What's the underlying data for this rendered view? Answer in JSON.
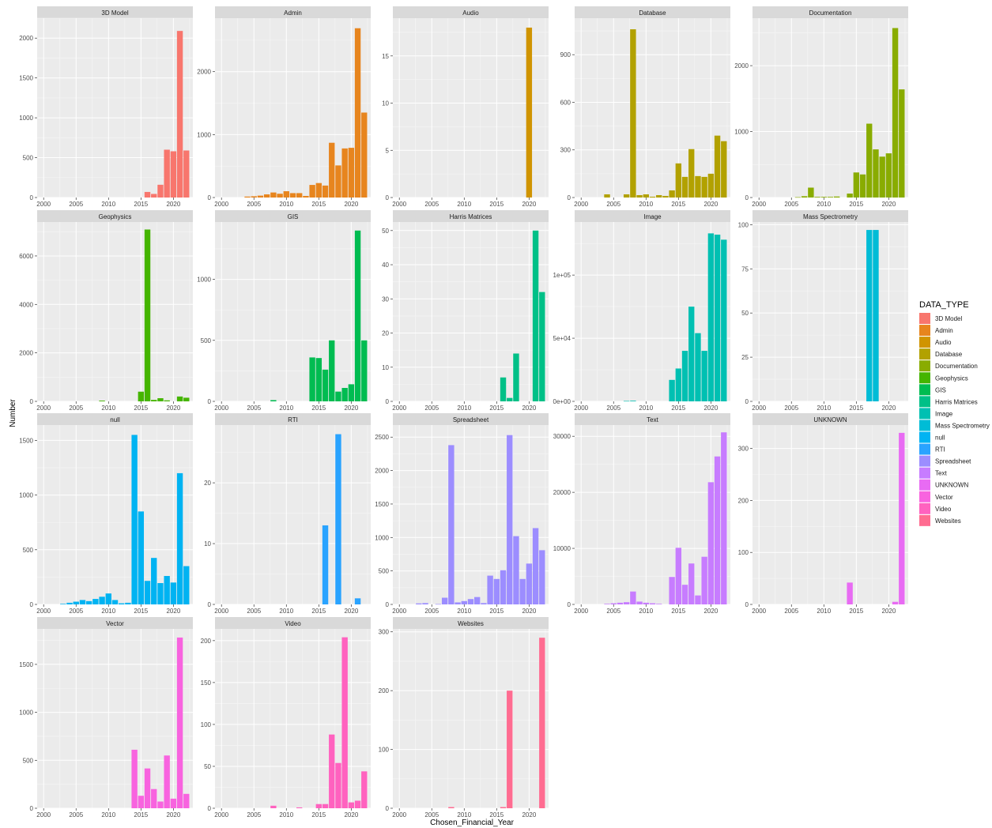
{
  "chart_data": {
    "type": "bar",
    "facet": "wrap",
    "facet_columns": 5,
    "facet_scales": "free_y",
    "xlabel": "Chosen_Financial_Year",
    "ylabel": "Number",
    "xlim": [
      1999,
      2023
    ],
    "x_ticks": [
      2000,
      2005,
      2010,
      2015,
      2020
    ],
    "grid": true,
    "legend": {
      "title": "DATA_TYPE",
      "position": "right",
      "entries": [
        "3D Model",
        "Admin",
        "Audio",
        "Database",
        "Documentation",
        "Geophysics",
        "GIS",
        "Harris Matrices",
        "Image",
        "Mass Spectrometry",
        "null",
        "RTI",
        "Spreadsheet",
        "Text",
        "UNKNOWN",
        "Vector",
        "Video",
        "Websites"
      ]
    },
    "panels": [
      {
        "name": "3D Model",
        "color": "#F8766D",
        "ylim": [
          0,
          2250
        ],
        "y_ticks": [
          0,
          500,
          1000,
          1500,
          2000
        ],
        "tick_format": "plain",
        "x": [
          2016,
          2017,
          2018,
          2019,
          2020,
          2021,
          2022
        ],
        "values": [
          70,
          45,
          160,
          600,
          580,
          2090,
          590
        ]
      },
      {
        "name": "Admin",
        "color": "#E7851E",
        "ylim": [
          0,
          2850
        ],
        "y_ticks": [
          0,
          1000,
          2000
        ],
        "tick_format": "plain",
        "x": [
          2004,
          2005,
          2006,
          2007,
          2008,
          2009,
          2010,
          2011,
          2012,
          2013,
          2014,
          2015,
          2016,
          2017,
          2018,
          2019,
          2020,
          2021,
          2022
        ],
        "values": [
          15,
          20,
          30,
          50,
          80,
          60,
          100,
          70,
          70,
          25,
          200,
          230,
          190,
          870,
          510,
          780,
          790,
          2690,
          1350
        ]
      },
      {
        "name": "Audio",
        "color": "#D09400",
        "ylim": [
          0,
          19
        ],
        "y_ticks": [
          0,
          5,
          10,
          15
        ],
        "tick_format": "plain",
        "x": [
          2020
        ],
        "values": [
          18
        ]
      },
      {
        "name": "Database",
        "color": "#B2A100",
        "ylim": [
          0,
          1130
        ],
        "y_ticks": [
          0,
          300,
          600,
          900
        ],
        "tick_format": "plain",
        "x": [
          2004,
          2007,
          2008,
          2009,
          2010,
          2011,
          2012,
          2013,
          2014,
          2015,
          2016,
          2017,
          2018,
          2019,
          2020,
          2021,
          2022
        ],
        "values": [
          20,
          20,
          1060,
          15,
          20,
          5,
          15,
          10,
          45,
          215,
          130,
          305,
          135,
          130,
          150,
          390,
          355
        ]
      },
      {
        "name": "Documentation",
        "color": "#89AC00",
        "ylim": [
          0,
          2720
        ],
        "y_ticks": [
          0,
          1000,
          2000
        ],
        "tick_format": "plain",
        "x": [
          2006,
          2007,
          2008,
          2009,
          2010,
          2011,
          2012,
          2014,
          2015,
          2016,
          2017,
          2018,
          2019,
          2020,
          2021,
          2022
        ],
        "values": [
          5,
          20,
          150,
          10,
          10,
          10,
          15,
          60,
          380,
          350,
          1120,
          730,
          620,
          670,
          2570,
          1640
        ]
      },
      {
        "name": "Geophysics",
        "color": "#45B500",
        "ylim": [
          0,
          7400
        ],
        "y_ticks": [
          0,
          2000,
          4000,
          6000
        ],
        "tick_format": "plain",
        "x": [
          2009,
          2015,
          2016,
          2017,
          2018,
          2019,
          2021,
          2022
        ],
        "values": [
          30,
          400,
          7090,
          60,
          130,
          40,
          200,
          150
        ]
      },
      {
        "name": "GIS",
        "color": "#00BC51",
        "ylim": [
          0,
          1470
        ],
        "y_ticks": [
          0,
          500,
          1000
        ],
        "tick_format": "plain",
        "x": [
          2008,
          2014,
          2015,
          2016,
          2017,
          2018,
          2019,
          2020,
          2021,
          2022
        ],
        "values": [
          10,
          360,
          355,
          260,
          500,
          80,
          110,
          140,
          1400,
          500
        ]
      },
      {
        "name": "Harris Matrices",
        "color": "#00C087",
        "ylim": [
          0,
          52.5
        ],
        "y_ticks": [
          0,
          10,
          20,
          30,
          40,
          50
        ],
        "tick_format": "plain",
        "x": [
          2016,
          2017,
          2018,
          2021,
          2022
        ],
        "values": [
          7,
          1,
          14,
          50,
          32
        ]
      },
      {
        "name": "Image",
        "color": "#00C0B2",
        "ylim": [
          0,
          142000
        ],
        "y_ticks": [
          0,
          50000,
          100000
        ],
        "tick_format": "sci",
        "x": [
          2007,
          2008,
          2014,
          2015,
          2016,
          2017,
          2018,
          2019,
          2020,
          2021,
          2022
        ],
        "values": [
          300,
          500,
          17000,
          26000,
          40000,
          75000,
          54000,
          40000,
          133000,
          132000,
          128000
        ]
      },
      {
        "name": "Mass Spectrometry",
        "color": "#00BCD6",
        "ylim": [
          0,
          101.5
        ],
        "y_ticks": [
          0,
          25,
          50,
          75,
          100
        ],
        "tick_format": "plain",
        "x": [
          2017,
          2018
        ],
        "values": [
          97,
          97
        ]
      },
      {
        "name": "null",
        "color": "#00B3F2",
        "ylim": [
          0,
          1640
        ],
        "y_ticks": [
          0,
          500,
          1000,
          1500
        ],
        "tick_format": "plain",
        "x": [
          2003,
          2004,
          2005,
          2006,
          2007,
          2008,
          2009,
          2010,
          2011,
          2012,
          2013,
          2014,
          2015,
          2016,
          2017,
          2018,
          2019,
          2020,
          2021,
          2022
        ],
        "values": [
          5,
          15,
          25,
          40,
          30,
          50,
          70,
          100,
          40,
          10,
          15,
          1550,
          850,
          215,
          425,
          195,
          260,
          200,
          1200,
          350
        ]
      },
      {
        "name": "RTI",
        "color": "#29A3FF",
        "ylim": [
          0,
          29.5
        ],
        "y_ticks": [
          0,
          10,
          20
        ],
        "tick_format": "plain",
        "x": [
          2016,
          2018,
          2021
        ],
        "values": [
          13,
          28,
          1
        ]
      },
      {
        "name": "Spreadsheet",
        "color": "#9C8DFF",
        "ylim": [
          0,
          2680
        ],
        "y_ticks": [
          0,
          500,
          1000,
          1500,
          2000,
          2500
        ],
        "tick_format": "plain",
        "x": [
          2003,
          2004,
          2006,
          2007,
          2008,
          2009,
          2010,
          2011,
          2012,
          2013,
          2014,
          2015,
          2016,
          2017,
          2018,
          2019,
          2020,
          2021,
          2022
        ],
        "values": [
          15,
          20,
          5,
          100,
          2380,
          30,
          50,
          80,
          110,
          20,
          430,
          380,
          510,
          2530,
          1020,
          380,
          610,
          1140,
          810
        ]
      },
      {
        "name": "Text",
        "color": "#C77CFF",
        "ylim": [
          0,
          32000
        ],
        "y_ticks": [
          0,
          10000,
          20000,
          30000
        ],
        "tick_format": "plain",
        "x": [
          2004,
          2005,
          2006,
          2007,
          2008,
          2009,
          2010,
          2011,
          2012,
          2014,
          2015,
          2016,
          2017,
          2018,
          2019,
          2020,
          2021,
          2022
        ],
        "values": [
          100,
          200,
          300,
          400,
          2300,
          500,
          300,
          200,
          100,
          4900,
          10100,
          3500,
          7300,
          1600,
          8500,
          21800,
          26400,
          30700
        ]
      },
      {
        "name": "UNKNOWN",
        "color": "#E86BF3",
        "ylim": [
          0,
          345
        ],
        "y_ticks": [
          0,
          100,
          200,
          300
        ],
        "tick_format": "plain",
        "x": [
          2014,
          2021,
          2022
        ],
        "values": [
          42,
          5,
          330
        ]
      },
      {
        "name": "Vector",
        "color": "#F863DF",
        "ylim": [
          0,
          1870
        ],
        "y_ticks": [
          0,
          500,
          1000,
          1500
        ],
        "tick_format": "plain",
        "x": [
          2014,
          2015,
          2016,
          2017,
          2018,
          2019,
          2020,
          2021,
          2022
        ],
        "values": [
          610,
          130,
          415,
          200,
          70,
          550,
          100,
          1780,
          150
        ]
      },
      {
        "name": "Video",
        "color": "#FF62BF",
        "ylim": [
          0,
          214
        ],
        "y_ticks": [
          0,
          50,
          100,
          150,
          200
        ],
        "tick_format": "plain",
        "x": [
          2008,
          2012,
          2015,
          2016,
          2017,
          2018,
          2019,
          2020,
          2021,
          2022
        ],
        "values": [
          3,
          1,
          5,
          5,
          88,
          54,
          204,
          7,
          9,
          44
        ]
      },
      {
        "name": "Websites",
        "color": "#FF6C91",
        "ylim": [
          0,
          305
        ],
        "y_ticks": [
          0,
          100,
          200,
          300
        ],
        "tick_format": "plain",
        "x": [
          2008,
          2016,
          2017,
          2022
        ],
        "values": [
          2,
          2,
          200,
          290
        ]
      }
    ]
  }
}
